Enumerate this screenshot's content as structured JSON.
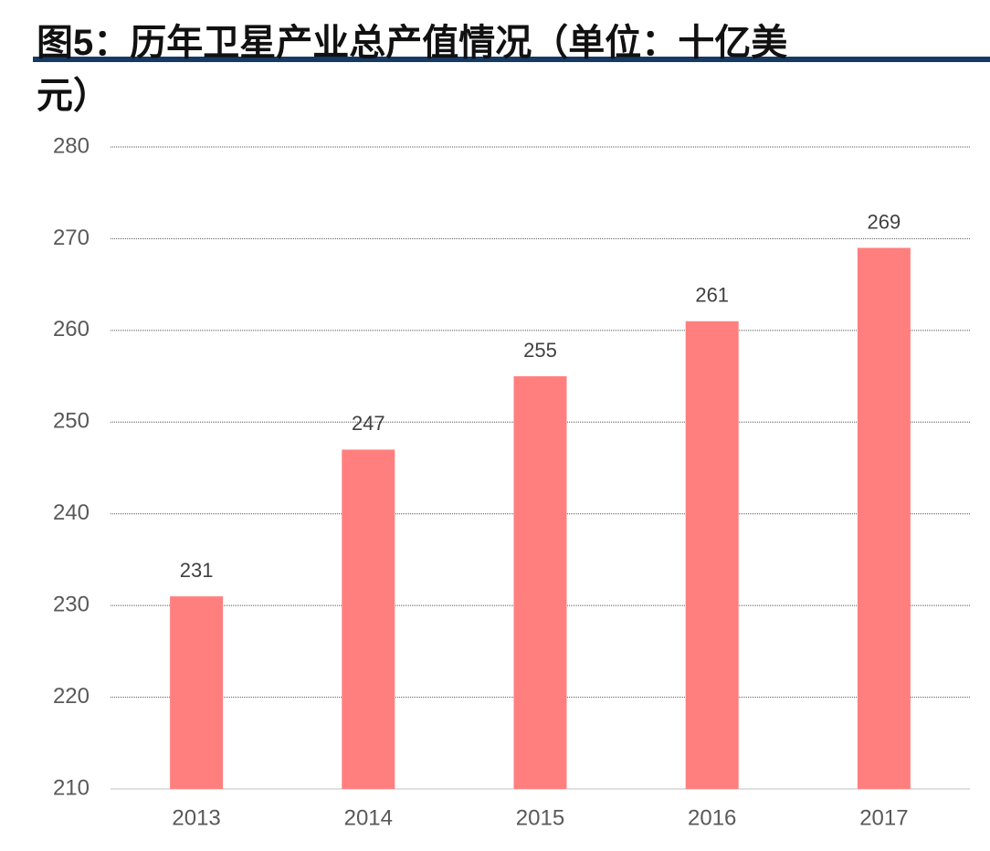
{
  "chart_data": {
    "type": "bar",
    "title": "图5：历年卫星产业总产值情况（单位：十亿美元）",
    "categories": [
      "2013",
      "2014",
      "2015",
      "2016",
      "2017"
    ],
    "values": [
      231,
      247,
      255,
      261,
      269
    ],
    "color": "#ff7f7f",
    "ylim": [
      210,
      280
    ],
    "yticks": [
      210,
      220,
      230,
      240,
      250,
      260,
      270,
      280
    ],
    "grid": true
  }
}
